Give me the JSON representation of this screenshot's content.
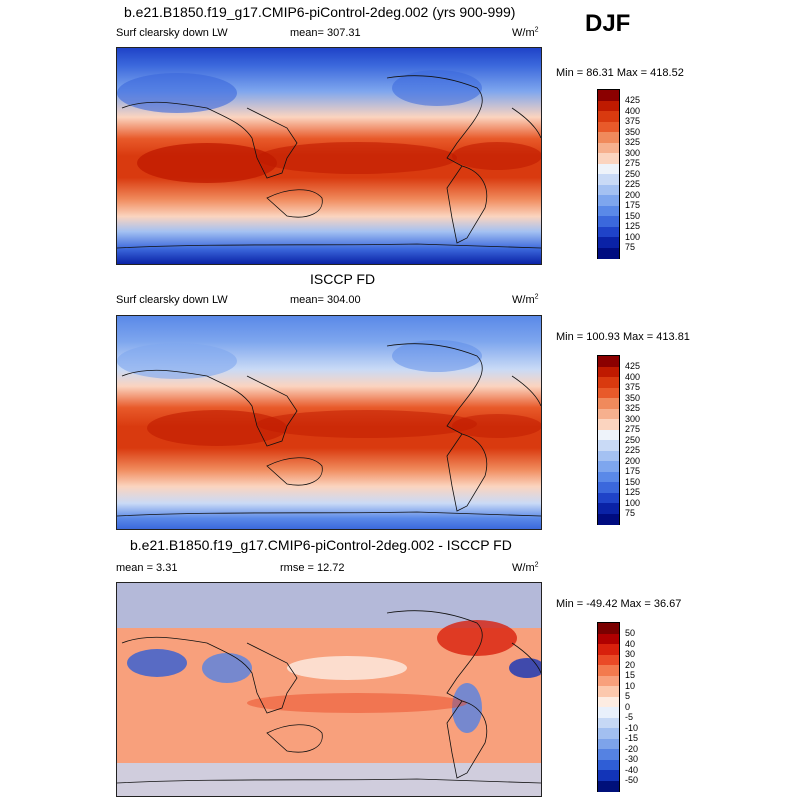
{
  "season": "DJF",
  "panels": [
    {
      "title": "b.e21.B1850.f19_g17.CMIP6-piControl-2deg.002 (yrs 900-999)",
      "left_label": "Surf clearsky down LW",
      "center_label": "mean= 307.31",
      "units_base": "W/m",
      "units_exp": "2",
      "minmax": "Min =  86.31 Max = 418.52",
      "colorbar": {
        "levels": [
          "425",
          "400",
          "375",
          "350",
          "325",
          "300",
          "275",
          "250",
          "225",
          "200",
          "175",
          "150",
          "125",
          "100",
          "75"
        ],
        "colors": [
          "#8b0000",
          "#bf1a00",
          "#d93a0f",
          "#e85a2a",
          "#f08a5c",
          "#f6b08e",
          "#fbd4bf",
          "#eef3fa",
          "#c9daf6",
          "#a4c1f2",
          "#7ea6ee",
          "#5a89e8",
          "#3b68dc",
          "#1f43c8",
          "#0a22a6",
          "#000c80"
        ]
      },
      "chart_data": {
        "type": "heatmap",
        "variable": "Surf clearsky down LW",
        "units": "W/m2",
        "mean": 307.31,
        "min": 86.31,
        "max": 418.52,
        "colorbar_range": [
          75,
          425
        ],
        "colorbar_levels": [
          75,
          100,
          125,
          150,
          175,
          200,
          225,
          250,
          275,
          300,
          325,
          350,
          375,
          400,
          425
        ]
      }
    },
    {
      "title": "ISCCP FD",
      "left_label": "Surf clearsky down LW",
      "center_label": "mean= 304.00",
      "units_base": "W/m",
      "units_exp": "2",
      "minmax": "Min = 100.93 Max = 413.81",
      "colorbar": {
        "levels": [
          "425",
          "400",
          "375",
          "350",
          "325",
          "300",
          "275",
          "250",
          "225",
          "200",
          "175",
          "150",
          "125",
          "100",
          "75"
        ],
        "colors": [
          "#8b0000",
          "#bf1a00",
          "#d93a0f",
          "#e85a2a",
          "#f08a5c",
          "#f6b08e",
          "#fbd4bf",
          "#eef3fa",
          "#c9daf6",
          "#a4c1f2",
          "#7ea6ee",
          "#5a89e8",
          "#3b68dc",
          "#1f43c8",
          "#0a22a6",
          "#000c80"
        ]
      },
      "chart_data": {
        "type": "heatmap",
        "variable": "Surf clearsky down LW",
        "units": "W/m2",
        "mean": 304.0,
        "min": 100.93,
        "max": 413.81,
        "colorbar_range": [
          75,
          425
        ],
        "colorbar_levels": [
          75,
          100,
          125,
          150,
          175,
          200,
          225,
          250,
          275,
          300,
          325,
          350,
          375,
          400,
          425
        ]
      }
    },
    {
      "title": "b.e21.B1850.f19_g17.CMIP6-piControl-2deg.002 - ISCCP FD",
      "left_label": "mean =   3.31",
      "center_label": "rmse =  12.72",
      "units_base": "W/m",
      "units_exp": "2",
      "minmax": "Min = -49.42 Max =  36.67",
      "colorbar": {
        "levels": [
          "50",
          "40",
          "30",
          "20",
          "15",
          "10",
          "5",
          "0",
          "-5",
          "-10",
          "-15",
          "-20",
          "-30",
          "-40",
          "-50"
        ],
        "colors": [
          "#7a0000",
          "#b00000",
          "#d8200c",
          "#ea4a26",
          "#f37a4e",
          "#f8a07c",
          "#fcc8ad",
          "#fdece2",
          "#e9f0fb",
          "#c6d8f5",
          "#a2bff0",
          "#7da3ea",
          "#5582e2",
          "#2f5ed6",
          "#1234b8",
          "#00107a"
        ]
      },
      "chart_data": {
        "type": "heatmap",
        "variable": "Surf clearsky down LW difference",
        "units": "W/m2",
        "mean": 3.31,
        "rmse": 12.72,
        "min": -49.42,
        "max": 36.67,
        "colorbar_range": [
          -50,
          50
        ],
        "colorbar_levels": [
          -50,
          -40,
          -30,
          -20,
          -15,
          -10,
          -5,
          0,
          5,
          10,
          15,
          20,
          30,
          40,
          50
        ]
      }
    }
  ]
}
